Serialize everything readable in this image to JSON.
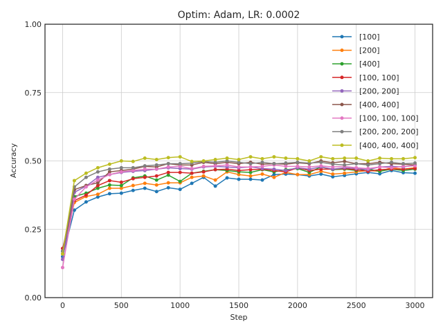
{
  "chart_data": {
    "type": "line",
    "title": "Optim: Adam, LR: 0.0002",
    "xlabel": "Step",
    "ylabel": "Accuracy",
    "xlim": [
      -150,
      3150
    ],
    "ylim": [
      0.0,
      1.0
    ],
    "x_ticks": [
      0,
      500,
      1000,
      1500,
      2000,
      2500,
      3000
    ],
    "y_ticks": [
      0.0,
      0.25,
      0.5,
      0.75,
      1.0
    ],
    "x_tick_labels": [
      "0",
      "500",
      "1000",
      "1500",
      "2000",
      "2500",
      "3000"
    ],
    "y_tick_labels": [
      "0.00",
      "0.25",
      "0.50",
      "0.75",
      "1.00"
    ],
    "grid": true,
    "legend_position": "top-right",
    "x": [
      0,
      100,
      200,
      300,
      400,
      500,
      600,
      700,
      800,
      900,
      1000,
      1100,
      1200,
      1300,
      1400,
      1500,
      1600,
      1700,
      1800,
      1900,
      2000,
      2100,
      2200,
      2300,
      2400,
      2500,
      2600,
      2700,
      2800,
      2900,
      3000
    ],
    "series": [
      {
        "name": "[100]",
        "color": "#1f77b4",
        "values": [
          0.15,
          0.32,
          0.35,
          0.368,
          0.38,
          0.382,
          0.392,
          0.4,
          0.388,
          0.402,
          0.396,
          0.418,
          0.44,
          0.408,
          0.438,
          0.433,
          0.433,
          0.43,
          0.45,
          0.452,
          0.45,
          0.445,
          0.452,
          0.442,
          0.447,
          0.453,
          0.458,
          0.453,
          0.465,
          0.457,
          0.455
        ]
      },
      {
        "name": "[200]",
        "color": "#ff7f0e",
        "values": [
          0.16,
          0.348,
          0.37,
          0.378,
          0.4,
          0.4,
          0.41,
          0.418,
          0.412,
          0.42,
          0.42,
          0.44,
          0.445,
          0.43,
          0.46,
          0.45,
          0.445,
          0.452,
          0.44,
          0.458,
          0.45,
          0.45,
          0.462,
          0.452,
          0.455,
          0.46,
          0.465,
          0.462,
          0.475,
          0.47,
          0.475
        ]
      },
      {
        "name": "[400]",
        "color": "#2ca02c",
        "values": [
          0.17,
          0.37,
          0.382,
          0.4,
          0.412,
          0.41,
          0.438,
          0.445,
          0.43,
          0.448,
          0.425,
          0.455,
          0.462,
          0.468,
          0.465,
          0.46,
          0.458,
          0.468,
          0.46,
          0.468,
          0.472,
          0.458,
          0.478,
          0.468,
          0.47,
          0.465,
          0.47,
          0.462,
          0.47,
          0.465,
          0.47
        ]
      },
      {
        "name": "[100, 100]",
        "color": "#d62728",
        "values": [
          0.18,
          0.355,
          0.375,
          0.41,
          0.428,
          0.422,
          0.435,
          0.44,
          0.445,
          0.458,
          0.458,
          0.455,
          0.46,
          0.468,
          0.47,
          0.465,
          0.468,
          0.47,
          0.465,
          0.46,
          0.475,
          0.465,
          0.47,
          0.47,
          0.472,
          0.468,
          0.462,
          0.468,
          0.47,
          0.47,
          0.472
        ]
      },
      {
        "name": "[200, 200]",
        "color": "#9467bd",
        "values": [
          0.14,
          0.385,
          0.408,
          0.44,
          0.45,
          0.458,
          0.462,
          0.465,
          0.47,
          0.475,
          0.472,
          0.47,
          0.478,
          0.48,
          0.478,
          0.475,
          0.478,
          0.472,
          0.47,
          0.465,
          0.475,
          0.47,
          0.478,
          0.47,
          0.475,
          0.472,
          0.468,
          0.478,
          0.48,
          0.478,
          0.485
        ]
      },
      {
        "name": "[400, 400]",
        "color": "#8c564b",
        "values": [
          0.16,
          0.395,
          0.41,
          0.42,
          0.46,
          0.465,
          0.47,
          0.48,
          0.478,
          0.49,
          0.485,
          0.485,
          0.495,
          0.49,
          0.495,
          0.49,
          0.495,
          0.488,
          0.49,
          0.488,
          0.493,
          0.49,
          0.5,
          0.493,
          0.498,
          0.49,
          0.49,
          0.495,
          0.49,
          0.488,
          0.485
        ]
      },
      {
        "name": "[100, 100, 100]",
        "color": "#e377c2",
        "values": [
          0.11,
          0.36,
          0.405,
          0.43,
          0.45,
          0.46,
          0.465,
          0.47,
          0.47,
          0.478,
          0.48,
          0.472,
          0.48,
          0.482,
          0.485,
          0.478,
          0.478,
          0.48,
          0.485,
          0.48,
          0.48,
          0.478,
          0.482,
          0.478,
          0.48,
          0.475,
          0.472,
          0.478,
          0.475,
          0.48,
          0.482
        ]
      },
      {
        "name": "[200, 200, 200]",
        "color": "#7f7f7f",
        "values": [
          0.17,
          0.405,
          0.44,
          0.46,
          0.47,
          0.475,
          0.475,
          0.482,
          0.485,
          0.49,
          0.49,
          0.492,
          0.498,
          0.495,
          0.5,
          0.495,
          0.49,
          0.495,
          0.49,
          0.492,
          0.495,
          0.492,
          0.495,
          0.488,
          0.485,
          0.49,
          0.485,
          0.49,
          0.495,
          0.49,
          0.492
        ]
      },
      {
        "name": "[400, 400, 400]",
        "color": "#bcbd22",
        "values": [
          0.16,
          0.428,
          0.455,
          0.475,
          0.488,
          0.5,
          0.498,
          0.51,
          0.505,
          0.512,
          0.515,
          0.498,
          0.5,
          0.505,
          0.51,
          0.505,
          0.515,
          0.508,
          0.515,
          0.51,
          0.508,
          0.5,
          0.515,
          0.508,
          0.51,
          0.51,
          0.5,
          0.51,
          0.508,
          0.508,
          0.512
        ]
      }
    ]
  }
}
